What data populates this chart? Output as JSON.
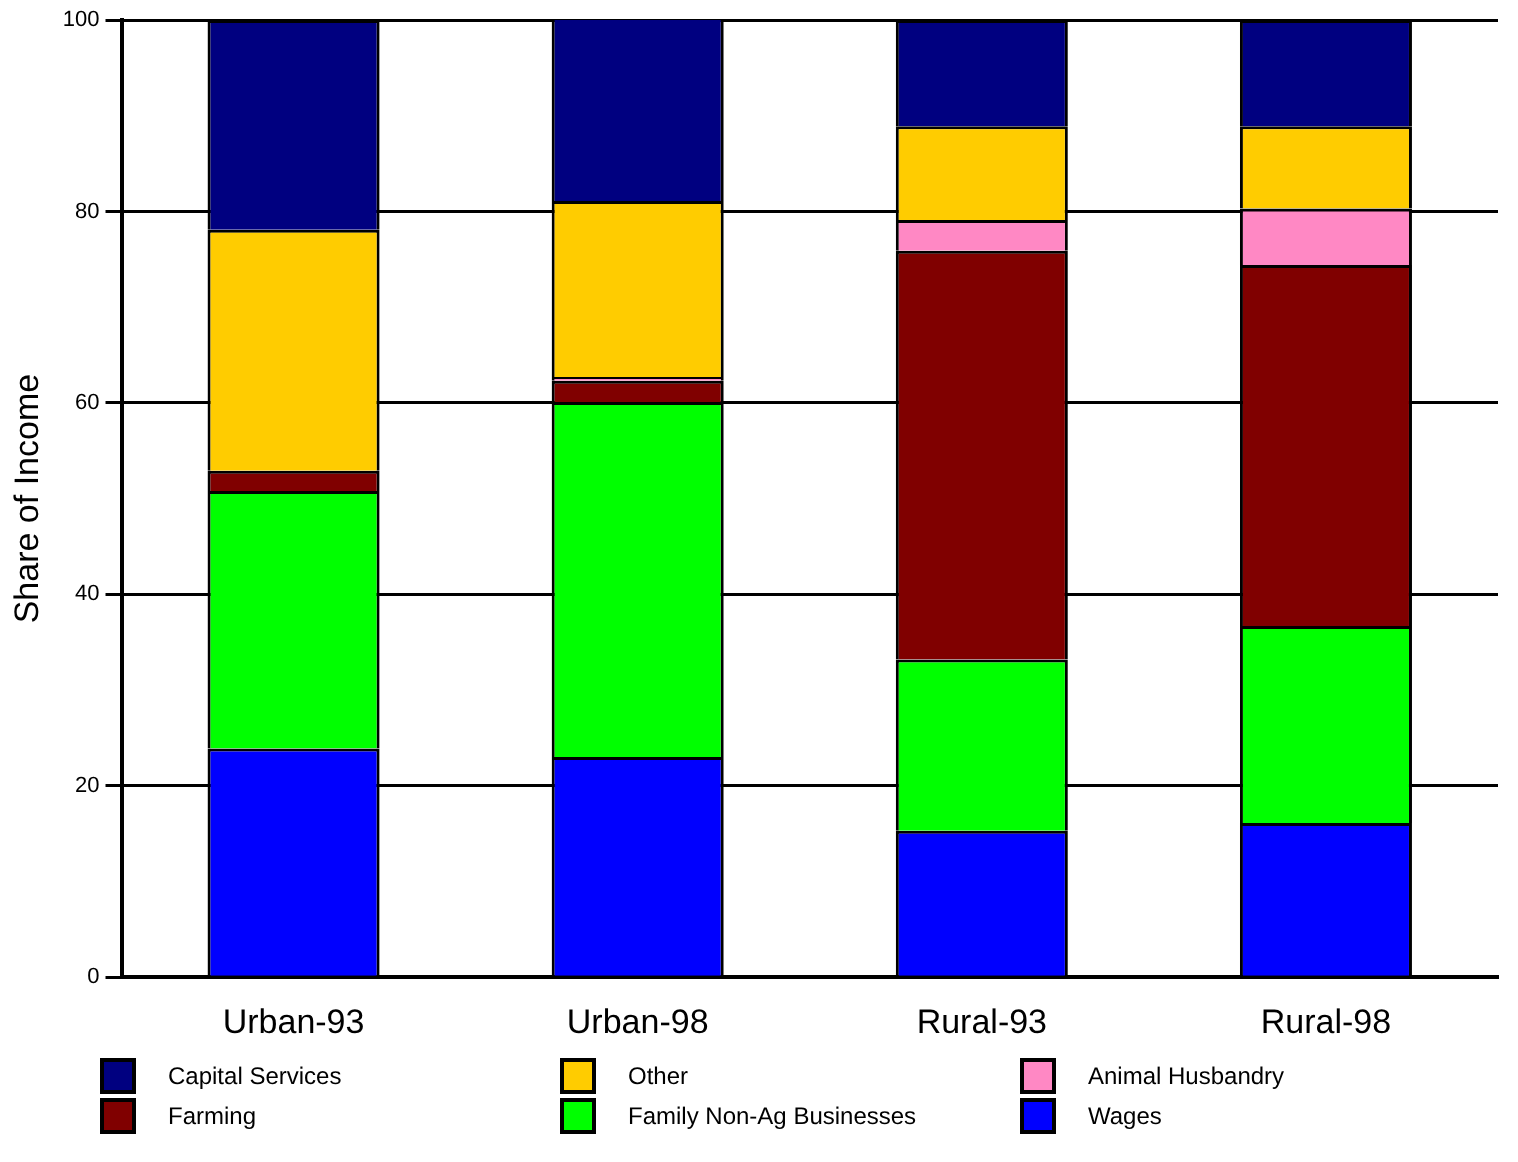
{
  "chart_data": {
    "type": "bar",
    "ylabel": "Share of Income",
    "categories": [
      "Urban-93",
      "Urban-98",
      "Rural-93",
      "Rural-98"
    ],
    "stacked": true,
    "ylim": [
      0,
      100
    ],
    "yticks": [
      0,
      20,
      40,
      60,
      80,
      100
    ],
    "grid": "y",
    "legend": "bottom",
    "series": [
      {
        "name": "Wages",
        "color": "#0000ff",
        "values": [
          23.9,
          23.0,
          15.3,
          16.1
        ]
      },
      {
        "name": "Family Non-Ag Businesses",
        "color": "#00ff00",
        "values": [
          26.9,
          37.1,
          17.9,
          20.6
        ]
      },
      {
        "name": "Farming",
        "color": "#800000",
        "values": [
          2.1,
          2.2,
          42.7,
          37.7
        ]
      },
      {
        "name": "Animal Husbandry",
        "color": "#ff88c4",
        "values": [
          0,
          0.4,
          3.2,
          5.9
        ]
      },
      {
        "name": "Other",
        "color": "#ffcc00",
        "values": [
          25.2,
          18.4,
          9.8,
          8.6
        ]
      },
      {
        "name": "Capital Services",
        "color": "#000080",
        "values": [
          21.9,
          19.3,
          11.1,
          11.1
        ]
      }
    ]
  }
}
